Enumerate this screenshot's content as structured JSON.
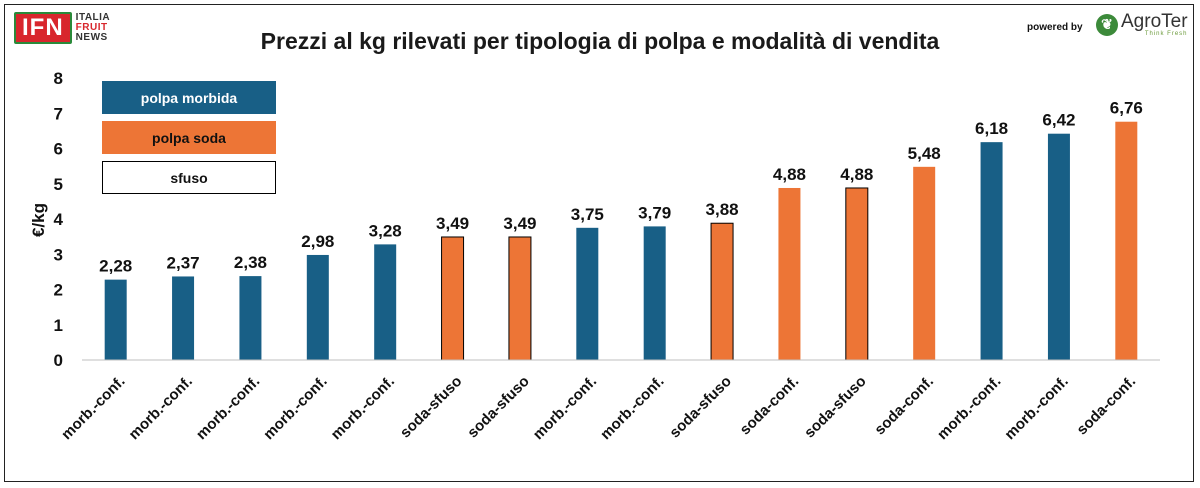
{
  "header": {
    "title": "Prezzi al kg rilevati per tipologia di polpa e modalità di vendita",
    "logo_ifn": "IFN",
    "logo_ifn_lines": [
      "ITALIA",
      "FRUIT",
      "NEWS"
    ],
    "powered_by": "powered by",
    "logo_agroter": "AgroTer",
    "logo_agroter_sub": "Think Fresh"
  },
  "legend": [
    {
      "label": "polpa morbida",
      "fill": "#185f86",
      "text_color": "#ffffff"
    },
    {
      "label": "polpa soda",
      "fill": "#ed7536",
      "text_color": "#111111"
    },
    {
      "label": "sfuso",
      "fill": "#ffffff",
      "text_color": "#111111"
    }
  ],
  "colors": {
    "morbida": "#185f86",
    "soda": "#ed7536",
    "sfuso_outline": "#000000"
  },
  "chart_data": {
    "type": "bar",
    "title": "Prezzi al kg rilevati per tipologia di polpa e modalità di vendita",
    "ylabel": "€/kg",
    "xlabel": "",
    "ylim": [
      0,
      8
    ],
    "yticks": [
      "0",
      "1",
      "2",
      "3",
      "4",
      "5",
      "6",
      "7",
      "8"
    ],
    "grid": false,
    "legend_position": "top-left",
    "categories": [
      "morb.-conf.",
      "morb.-conf.",
      "morb.-conf.",
      "morb.-conf.",
      "morb.-conf.",
      "soda-sfuso",
      "soda-sfuso",
      "morb.-conf.",
      "morb.-conf.",
      "soda-sfuso",
      "soda-conf.",
      "soda-sfuso",
      "soda-conf.",
      "morb.-conf.",
      "morb.-conf.",
      "soda-conf."
    ],
    "values": [
      2.28,
      2.37,
      2.38,
      2.98,
      3.28,
      3.49,
      3.49,
      3.75,
      3.79,
      3.88,
      4.88,
      4.88,
      5.48,
      6.18,
      6.42,
      6.76
    ],
    "value_labels": [
      "2,28",
      "2,37",
      "2,38",
      "2,98",
      "3,28",
      "3,49",
      "3,49",
      "3,75",
      "3,79",
      "3,88",
      "4,88",
      "4,88",
      "5,48",
      "6,18",
      "6,42",
      "6,76"
    ],
    "polpa": [
      "morbida",
      "morbida",
      "morbida",
      "morbida",
      "morbida",
      "soda",
      "soda",
      "morbida",
      "morbida",
      "soda",
      "soda",
      "soda",
      "soda",
      "morbida",
      "morbida",
      "soda"
    ],
    "sfuso": [
      false,
      false,
      false,
      false,
      false,
      true,
      true,
      false,
      false,
      true,
      false,
      true,
      false,
      false,
      false,
      false
    ]
  }
}
